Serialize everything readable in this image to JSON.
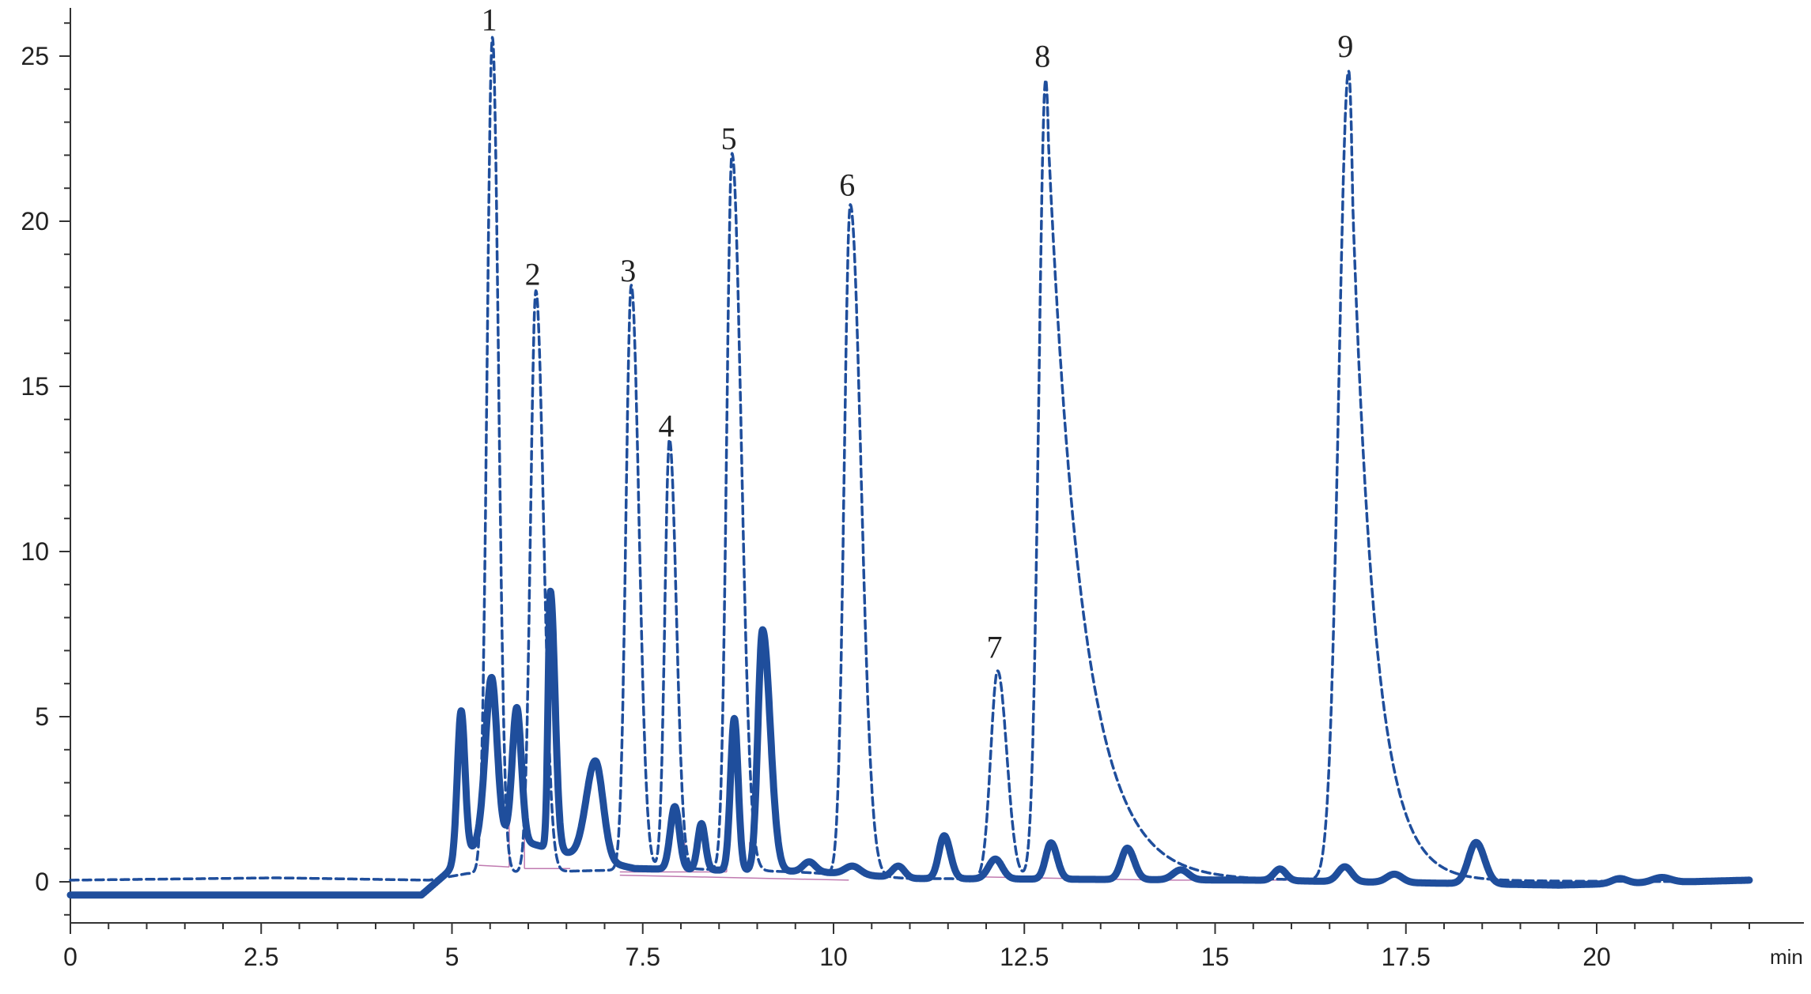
{
  "chart_data": {
    "type": "line",
    "title": "",
    "xlabel": "",
    "ylabel": "",
    "x_unit": "min",
    "xlim": [
      0,
      22
    ],
    "ylim": [
      -1.2,
      26.5
    ],
    "x_ticks": [
      0,
      2.5,
      5,
      7.5,
      10,
      12.5,
      15,
      17.5,
      20
    ],
    "x_tick_labels": [
      "0",
      "2.5",
      "5",
      "7.5",
      "10",
      "12.5",
      "15",
      "17.5",
      "20"
    ],
    "y_ticks": [
      0,
      5,
      10,
      15,
      20,
      25
    ],
    "y_tick_labels": [
      "0",
      "5",
      "10",
      "15",
      "20",
      "25"
    ],
    "grid": false,
    "legend": "none",
    "colors": {
      "series": "#1f4e9c",
      "integration": "#c07ab0"
    },
    "series": [
      {
        "style": "dashed",
        "baseline_points": [
          [
            0,
            0.05
          ],
          [
            2.7,
            0.12
          ],
          [
            4.7,
            0.05
          ],
          [
            5.2,
            0.25
          ],
          [
            8.0,
            0.4
          ],
          [
            9.5,
            0.3
          ],
          [
            11.0,
            0.1
          ],
          [
            16.0,
            0.05
          ],
          [
            22,
            0.0
          ]
        ],
        "peaks": [
          {
            "label": "1",
            "rt": 5.53,
            "height": 25.3,
            "width_left": 0.07,
            "width_right": 0.08
          },
          {
            "label": "2",
            "rt": 6.1,
            "height": 17.6,
            "width_left": 0.07,
            "width_right": 0.1
          },
          {
            "label": "3",
            "rt": 7.35,
            "height": 17.7,
            "width_left": 0.07,
            "width_right": 0.1
          },
          {
            "label": "4",
            "rt": 7.85,
            "height": 13.0,
            "width_left": 0.06,
            "width_right": 0.09
          },
          {
            "label": "5",
            "rt": 8.67,
            "height": 21.7,
            "width_left": 0.07,
            "width_right": 0.12
          },
          {
            "label": "6",
            "rt": 10.22,
            "height": 20.3,
            "width_left": 0.08,
            "width_right": 0.14
          },
          {
            "label": "7",
            "rt": 12.15,
            "height": 6.3,
            "width_left": 0.09,
            "width_right": 0.12
          },
          {
            "label": "8",
            "rt": 12.78,
            "height": 24.2,
            "width_left": 0.09,
            "width_right": 0.45
          },
          {
            "label": "9",
            "rt": 16.75,
            "height": 24.5,
            "width_left": 0.13,
            "width_right": 0.3
          }
        ]
      },
      {
        "style": "solid",
        "baseline_points": [
          [
            0,
            -0.4
          ],
          [
            4.6,
            -0.4
          ],
          [
            4.9,
            0.2
          ],
          [
            5.5,
            1.5
          ],
          [
            6.6,
            0.8
          ],
          [
            7.4,
            0.4
          ],
          [
            9.8,
            0.3
          ],
          [
            11.0,
            0.1
          ],
          [
            15.5,
            0.05
          ],
          [
            19.5,
            -0.1
          ],
          [
            22,
            0.05
          ]
        ],
        "peaks": [
          {
            "rt": 5.12,
            "height": 4.5,
            "width_left": 0.05,
            "width_right": 0.05
          },
          {
            "rt": 5.52,
            "height": 4.7,
            "width_left": 0.08,
            "width_right": 0.07
          },
          {
            "rt": 5.85,
            "height": 4.0,
            "width_left": 0.06,
            "width_right": 0.06
          },
          {
            "rt": 6.29,
            "height": 7.8,
            "width_left": 0.03,
            "width_right": 0.06
          },
          {
            "rt": 6.88,
            "height": 3.0,
            "width_left": 0.12,
            "width_right": 0.1
          },
          {
            "rt": 7.92,
            "height": 1.9,
            "width_left": 0.06,
            "width_right": 0.06
          },
          {
            "rt": 8.27,
            "height": 1.4,
            "width_left": 0.05,
            "width_right": 0.05
          },
          {
            "rt": 8.7,
            "height": 4.6,
            "width_left": 0.05,
            "width_right": 0.05
          },
          {
            "rt": 9.07,
            "height": 7.3,
            "width_left": 0.06,
            "width_right": 0.1
          },
          {
            "rt": 9.68,
            "height": 0.3,
            "width_left": 0.08,
            "width_right": 0.08
          },
          {
            "rt": 10.25,
            "height": 0.25,
            "width_left": 0.1,
            "width_right": 0.1
          },
          {
            "rt": 10.85,
            "height": 0.35,
            "width_left": 0.08,
            "width_right": 0.08
          },
          {
            "rt": 11.45,
            "height": 1.3,
            "width_left": 0.07,
            "width_right": 0.08
          },
          {
            "rt": 12.12,
            "height": 0.6,
            "width_left": 0.09,
            "width_right": 0.09
          },
          {
            "rt": 12.85,
            "height": 1.1,
            "width_left": 0.07,
            "width_right": 0.08
          },
          {
            "rt": 13.85,
            "height": 0.95,
            "width_left": 0.08,
            "width_right": 0.09
          },
          {
            "rt": 14.55,
            "height": 0.3,
            "width_left": 0.1,
            "width_right": 0.1
          },
          {
            "rt": 15.85,
            "height": 0.35,
            "width_left": 0.08,
            "width_right": 0.08
          },
          {
            "rt": 16.7,
            "height": 0.45,
            "width_left": 0.09,
            "width_right": 0.09
          },
          {
            "rt": 17.35,
            "height": 0.25,
            "width_left": 0.1,
            "width_right": 0.1
          },
          {
            "rt": 18.42,
            "height": 1.25,
            "width_left": 0.1,
            "width_right": 0.11
          },
          {
            "rt": 20.3,
            "height": 0.15,
            "width_left": 0.1,
            "width_right": 0.1
          },
          {
            "rt": 20.85,
            "height": 0.15,
            "width_left": 0.12,
            "width_right": 0.12
          }
        ]
      }
    ],
    "integration_baselines": [
      [
        [
          5.35,
          0.5
        ],
        [
          5.75,
          0.45
        ]
      ],
      [
        [
          5.75,
          0.45
        ],
        [
          5.75,
          2.5
        ]
      ],
      [
        [
          5.95,
          0.4
        ],
        [
          6.55,
          0.4
        ]
      ],
      [
        [
          5.95,
          0.4
        ],
        [
          5.95,
          3.0
        ]
      ],
      [
        [
          7.2,
          0.3
        ],
        [
          8.6,
          0.3
        ]
      ],
      [
        [
          8.6,
          0.3
        ],
        [
          8.6,
          1.5
        ]
      ],
      [
        [
          8.05,
          0.35
        ],
        [
          8.05,
          1.2
        ]
      ],
      [
        [
          8.9,
          0.35
        ],
        [
          8.9,
          1.2
        ]
      ],
      [
        [
          7.2,
          0.2
        ],
        [
          10.2,
          0.05
        ]
      ],
      [
        [
          11.9,
          0.15
        ],
        [
          14.3,
          0.05
        ]
      ],
      [
        [
          14.3,
          0.05
        ],
        [
          16.2,
          0.05
        ]
      ]
    ]
  }
}
